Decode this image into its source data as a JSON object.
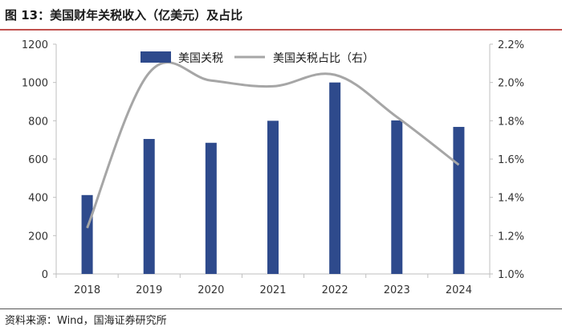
{
  "title": "图 13：美国财年关税收入（亿美元）及占比",
  "source": "资料来源：Wind，国海证券研究所",
  "colors": {
    "bar": "#2e4a8c",
    "line": "#a6a6a6",
    "title_rule": "#c0504d",
    "axis": "#bfbfbf"
  },
  "chart_data": {
    "type": "bar",
    "categories": [
      "2018",
      "2019",
      "2020",
      "2021",
      "2022",
      "2023",
      "2024"
    ],
    "series": [
      {
        "name": "美国关税",
        "type": "bar",
        "axis": "left",
        "values": [
          412,
          705,
          685,
          800,
          1000,
          802,
          768
        ]
      },
      {
        "name": "美国关税占比（右）",
        "type": "line",
        "axis": "right",
        "values": [
          1.24,
          2.05,
          2.01,
          1.98,
          2.04,
          1.82,
          1.57
        ]
      }
    ],
    "ylim_left": [
      0,
      1200
    ],
    "yticks_left": [
      "0",
      "200",
      "400",
      "600",
      "800",
      "1000",
      "1200"
    ],
    "ylim_right": [
      1.0,
      2.2
    ],
    "yticks_right": [
      "1.0%",
      "1.2%",
      "1.4%",
      "1.6%",
      "1.8%",
      "2.0%",
      "2.2%"
    ],
    "legend_position": "top",
    "grid": false
  }
}
